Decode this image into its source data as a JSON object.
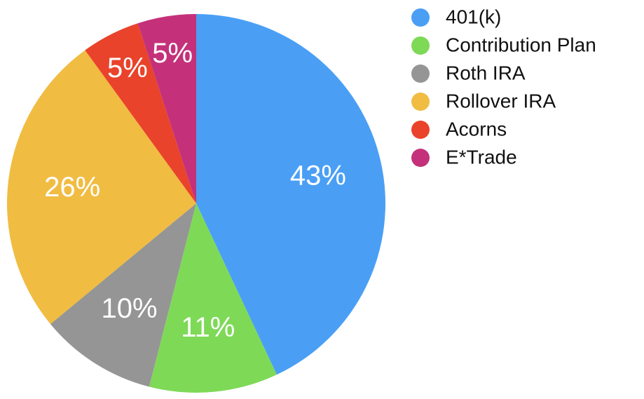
{
  "chart_data": {
    "type": "pie",
    "categories": [
      "401(k)",
      "Contribution Plan",
      "Roth IRA",
      "Rollover IRA",
      "Acorns",
      "E*Trade"
    ],
    "values": [
      43,
      11,
      10,
      26,
      5,
      5
    ],
    "value_labels": [
      "43%",
      "11%",
      "10%",
      "26%",
      "5%",
      "5%"
    ],
    "colors": [
      "#4a9ff5",
      "#7ed957",
      "#959595",
      "#f0bc42",
      "#e9432b",
      "#c4317a"
    ],
    "legend": "right"
  }
}
